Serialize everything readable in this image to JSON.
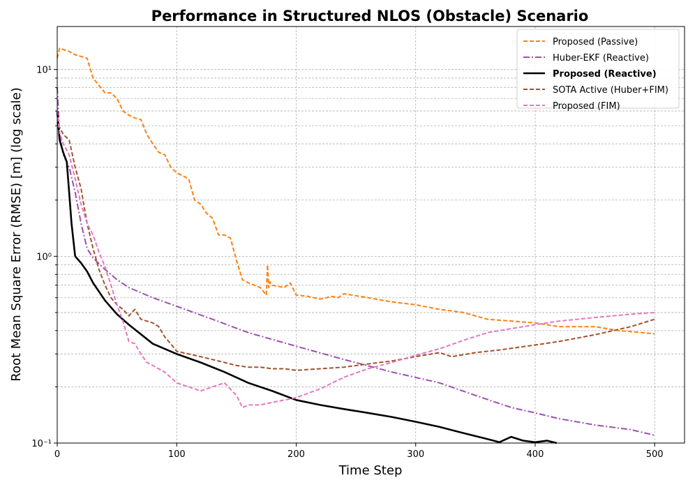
{
  "chart_data": {
    "type": "line",
    "title": "Performance in Structured NLOS (Obstacle) Scenario",
    "xlabel": "Time Step",
    "ylabel": "Root Mean Square Error (RMSE) [m] (log scale)",
    "xlim": [
      0,
      525
    ],
    "ylim": [
      0.1,
      17
    ],
    "yscale": "log",
    "grid": true,
    "legend_position": "top-right",
    "xticks": [
      0,
      100,
      200,
      300,
      400,
      500
    ],
    "xtick_labels": [
      "0",
      "100",
      "200",
      "300",
      "400",
      "500"
    ],
    "yticks": [
      0.1,
      1,
      10
    ],
    "ytick_labels": [
      "10⁻¹",
      "10⁰",
      "10¹"
    ],
    "series": [
      {
        "name": "Proposed (Passive)",
        "color": "#ff7f0e",
        "style": "dashed",
        "bold": false,
        "x": [
          0,
          2,
          10,
          15,
          25,
          30,
          40,
          45,
          50,
          55,
          60,
          65,
          70,
          75,
          80,
          85,
          90,
          95,
          100,
          105,
          110,
          115,
          120,
          125,
          130,
          135,
          140,
          145,
          150,
          155,
          160,
          165,
          170,
          175,
          176,
          177,
          178,
          180,
          190,
          195,
          200,
          210,
          220,
          230,
          235,
          240,
          260,
          280,
          300,
          320,
          340,
          360,
          400,
          420,
          450,
          470,
          500
        ],
        "y": [
          11.5,
          13,
          12.5,
          12,
          11.5,
          9,
          7.5,
          7.5,
          7,
          6,
          5.7,
          5.5,
          5.4,
          4.5,
          4.0,
          3.6,
          3.5,
          3.0,
          2.8,
          2.7,
          2.6,
          2.0,
          1.9,
          1.7,
          1.6,
          1.3,
          1.3,
          1.25,
          0.95,
          0.75,
          0.72,
          0.7,
          0.68,
          0.62,
          0.9,
          0.68,
          0.73,
          0.7,
          0.68,
          0.72,
          0.62,
          0.61,
          0.59,
          0.61,
          0.6,
          0.63,
          0.6,
          0.57,
          0.55,
          0.52,
          0.5,
          0.46,
          0.44,
          0.42,
          0.42,
          0.4,
          0.385
        ]
      },
      {
        "name": "Huber-EKF (Reactive)",
        "color": "#9b4fb0",
        "style": "dashdot",
        "bold": false,
        "x": [
          0,
          2,
          5,
          10,
          15,
          20,
          25,
          30,
          40,
          50,
          60,
          80,
          100,
          130,
          160,
          200,
          240,
          280,
          320,
          350,
          380,
          400,
          420,
          450,
          480,
          500
        ],
        "y": [
          8,
          4.5,
          3.5,
          3.0,
          2.2,
          1.5,
          1.1,
          0.98,
          0.85,
          0.75,
          0.68,
          0.6,
          0.54,
          0.46,
          0.39,
          0.33,
          0.28,
          0.24,
          0.21,
          0.18,
          0.155,
          0.145,
          0.135,
          0.125,
          0.118,
          0.11
        ]
      },
      {
        "name": "Proposed (Reactive)",
        "color": "#000000",
        "style": "solid",
        "bold": true,
        "x": [
          0,
          2,
          5,
          8,
          10,
          12,
          15,
          20,
          25,
          30,
          40,
          50,
          60,
          80,
          100,
          120,
          140,
          160,
          180,
          200,
          220,
          240,
          260,
          280,
          300,
          320,
          340,
          360,
          370,
          380,
          390,
          400,
          410,
          418
        ],
        "y": [
          6,
          4.2,
          3.6,
          3.2,
          2.2,
          1.5,
          1.0,
          0.92,
          0.83,
          0.72,
          0.58,
          0.49,
          0.43,
          0.34,
          0.3,
          0.27,
          0.24,
          0.21,
          0.19,
          0.17,
          0.16,
          0.152,
          0.145,
          0.138,
          0.13,
          0.122,
          0.113,
          0.105,
          0.101,
          0.108,
          0.103,
          0.101,
          0.103,
          0.1
        ]
      },
      {
        "name": "SOTA Active (Huber+FIM)",
        "color": "#a0522d",
        "style": "dashed",
        "bold": false,
        "x": [
          0,
          2,
          5,
          10,
          15,
          20,
          25,
          30,
          35,
          40,
          45,
          50,
          55,
          60,
          65,
          70,
          75,
          80,
          85,
          90,
          95,
          100,
          110,
          120,
          130,
          140,
          150,
          160,
          170,
          180,
          190,
          200,
          220,
          240,
          260,
          280,
          300,
          320,
          330,
          350,
          370,
          400,
          420,
          450,
          480,
          500
        ],
        "y": [
          5.0,
          4.9,
          4.5,
          4.2,
          3.0,
          2.3,
          1.5,
          1.1,
          0.85,
          0.7,
          0.6,
          0.55,
          0.52,
          0.48,
          0.52,
          0.46,
          0.45,
          0.44,
          0.42,
          0.37,
          0.34,
          0.31,
          0.3,
          0.29,
          0.28,
          0.27,
          0.26,
          0.255,
          0.255,
          0.25,
          0.25,
          0.245,
          0.25,
          0.255,
          0.265,
          0.275,
          0.29,
          0.305,
          0.29,
          0.305,
          0.315,
          0.335,
          0.35,
          0.38,
          0.42,
          0.46
        ]
      },
      {
        "name": "Proposed (FIM)",
        "color": "#e377c2",
        "style": "dashed",
        "bold": false,
        "x": [
          0,
          2,
          5,
          10,
          15,
          20,
          25,
          30,
          35,
          40,
          45,
          50,
          55,
          60,
          65,
          70,
          75,
          80,
          90,
          100,
          110,
          120,
          130,
          140,
          150,
          155,
          160,
          170,
          180,
          190,
          200,
          220,
          240,
          260,
          280,
          300,
          320,
          340,
          360,
          380,
          400,
          420,
          450,
          480,
          500
        ],
        "y": [
          6,
          4.6,
          4.0,
          3.5,
          2.6,
          1.9,
          1.5,
          1.3,
          1.05,
          0.88,
          0.7,
          0.55,
          0.45,
          0.35,
          0.34,
          0.3,
          0.27,
          0.26,
          0.24,
          0.21,
          0.2,
          0.19,
          0.2,
          0.21,
          0.18,
          0.155,
          0.16,
          0.16,
          0.165,
          0.17,
          0.175,
          0.195,
          0.225,
          0.25,
          0.27,
          0.295,
          0.32,
          0.355,
          0.39,
          0.41,
          0.43,
          0.45,
          0.47,
          0.49,
          0.5
        ]
      }
    ]
  }
}
